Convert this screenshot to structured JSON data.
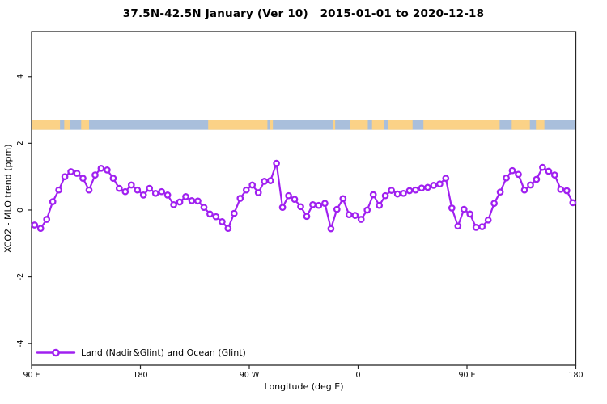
{
  "page": {
    "background": "#FFFFFF",
    "text_color": "#000000"
  },
  "chart_data": {
    "type": "line",
    "title": "37.5N-42.5N January (Ver 10)   2015-01-01 to 2020-12-18",
    "xlabel": "Longitude (deg E)",
    "ylabel": "XCO2 - MLO trend (ppm)",
    "xlim": [
      90,
      540
    ],
    "ylim": [
      -4.65,
      5.35
    ],
    "grid": false,
    "x_ticks": [
      {
        "lon": 90,
        "label": "90 E"
      },
      {
        "lon": 180,
        "label": "180"
      },
      {
        "lon": 270,
        "label": "90 W"
      },
      {
        "lon": 360,
        "label": "0"
      },
      {
        "lon": 450,
        "label": "90 E"
      },
      {
        "lon": 540,
        "label": "180"
      }
    ],
    "y_ticks": [
      {
        "v": 4,
        "label": "4"
      },
      {
        "v": 2,
        "label": "2"
      },
      {
        "v": 0,
        "label": "0"
      },
      {
        "v": -2,
        "label": "-2"
      },
      {
        "v": -4,
        "label": "-4"
      }
    ],
    "legend": {
      "position": "bottom-left",
      "label": "Land (Nadir&Glint) and Ocean (Glint)"
    },
    "series": [
      {
        "name": "Land (Nadir&Glint) and Ocean (Glint)",
        "color": "#A020F0",
        "marker": "open-circle",
        "x_start": 92.5,
        "x_step": 5,
        "values": [
          -0.45,
          -0.55,
          -0.28,
          0.25,
          0.6,
          1.0,
          1.15,
          1.1,
          0.95,
          0.6,
          1.05,
          1.25,
          1.2,
          0.95,
          0.65,
          0.55,
          0.75,
          0.6,
          0.45,
          0.65,
          0.5,
          0.55,
          0.45,
          0.16,
          0.24,
          0.4,
          0.28,
          0.27,
          0.08,
          -0.12,
          -0.2,
          -0.35,
          -0.55,
          -0.1,
          0.35,
          0.6,
          0.75,
          0.52,
          0.86,
          0.88,
          1.4,
          0.08,
          0.43,
          0.32,
          0.1,
          -0.19,
          0.16,
          0.14,
          0.2,
          -0.56,
          0.02,
          0.34,
          -0.14,
          -0.16,
          -0.28,
          0.0,
          0.46,
          0.14,
          0.43,
          0.59,
          0.48,
          0.5,
          0.58,
          0.6,
          0.66,
          0.68,
          0.74,
          0.78,
          0.95,
          0.06,
          -0.48,
          0.02,
          -0.12,
          -0.52,
          -0.5,
          -0.3,
          0.2,
          0.54,
          0.96,
          1.18,
          1.07,
          0.6,
          0.75,
          0.92,
          1.28,
          1.16,
          1.05,
          0.62,
          0.58,
          0.22
        ]
      }
    ],
    "map_strip": {
      "meaning": "land-ocean world strip for latitude band 37.5N-42.5N",
      "value_center": 2.55,
      "ocean_color": "#A9BFDC",
      "land_color": "#FBD287",
      "ocean_extent_lon": [
        90,
        540
      ],
      "land_segments_lon": [
        [
          90,
          113.5
        ],
        [
          117,
          122
        ],
        [
          131,
          137.5
        ],
        [
          236,
          285
        ],
        [
          287,
          289.5
        ],
        [
          339,
          341
        ],
        [
          353,
          368
        ],
        [
          371.5,
          381.5
        ],
        [
          385,
          405
        ],
        [
          414,
          477
        ],
        [
          487,
          502
        ],
        [
          507,
          514
        ]
      ]
    },
    "axis_color": "#262626"
  }
}
